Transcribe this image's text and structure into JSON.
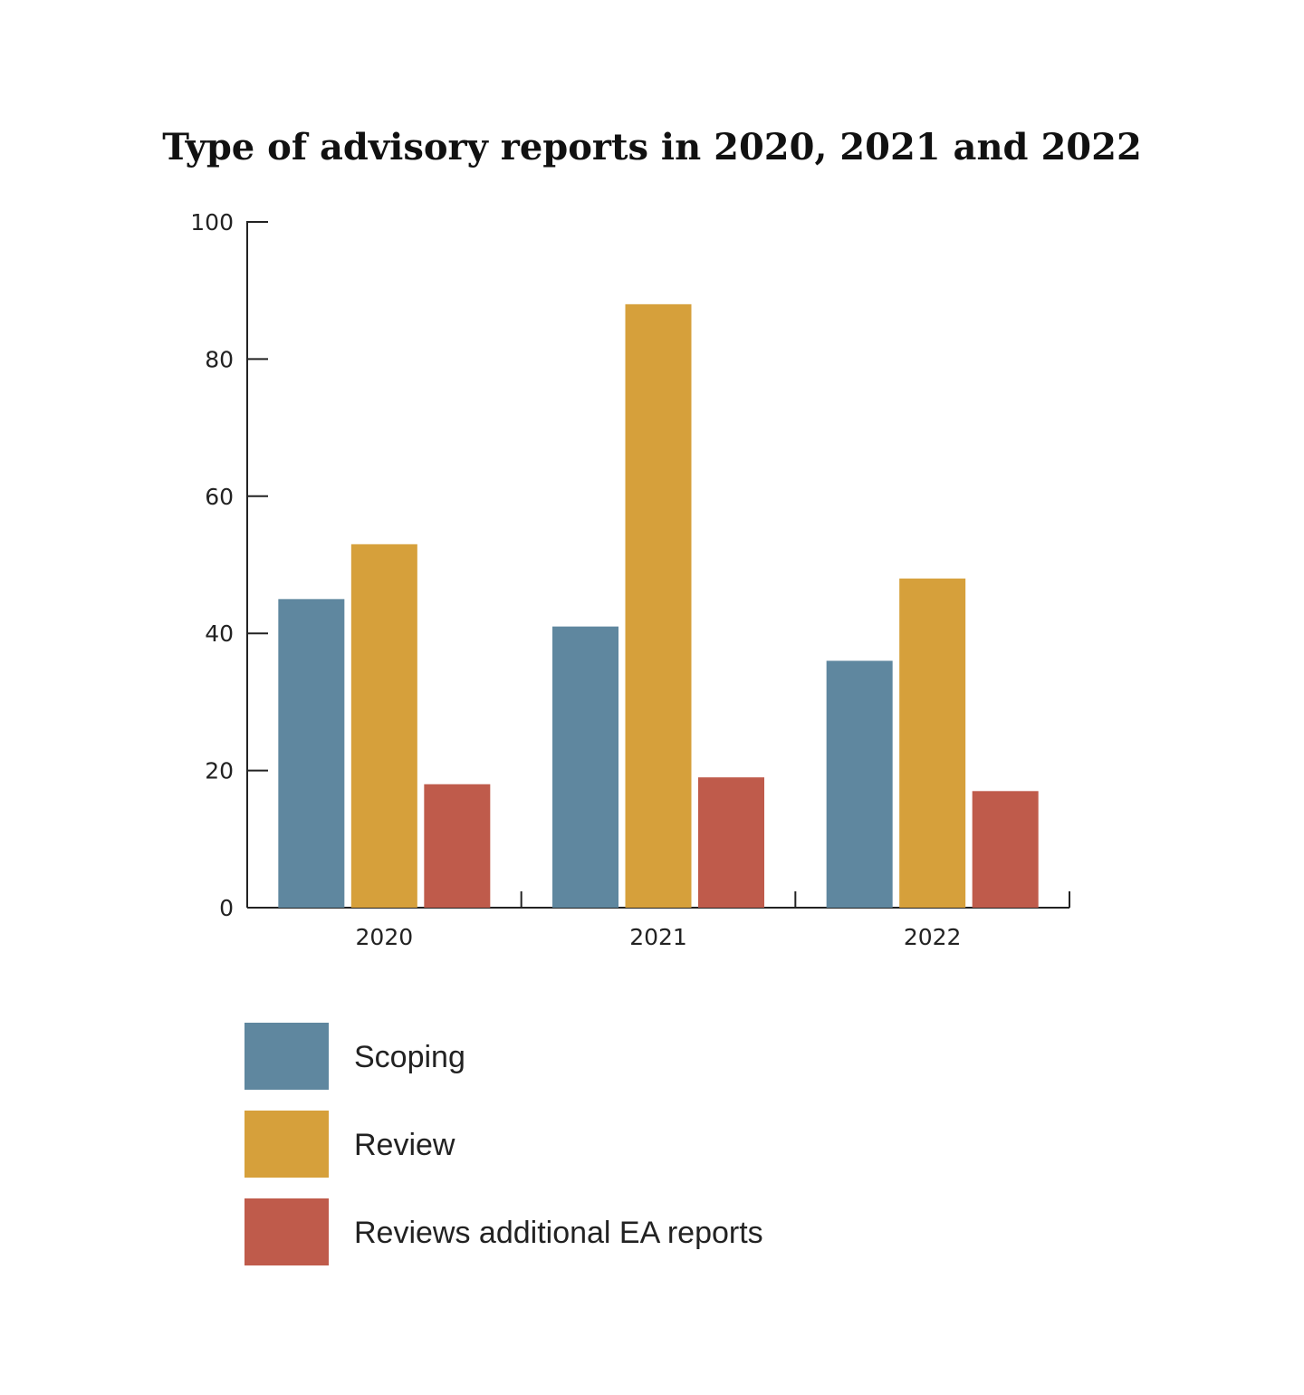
{
  "chart_data": {
    "type": "bar",
    "title": "Type of advisory reports in 2020, 2021 and 2022",
    "xlabel": "",
    "ylabel": "",
    "categories": [
      "2020",
      "2021",
      "2022"
    ],
    "series": [
      {
        "name": "Scoping",
        "color": "#5f879f",
        "values": [
          45,
          41,
          36
        ]
      },
      {
        "name": "Review",
        "color": "#d6a03b",
        "values": [
          53,
          88,
          48
        ]
      },
      {
        "name": "Reviews additional EA reports",
        "color": "#bf5b4b",
        "values": [
          18,
          19,
          17
        ]
      }
    ],
    "ylim": [
      0,
      100
    ],
    "yticks": [
      0,
      20,
      40,
      60,
      80,
      100
    ],
    "grid": false,
    "legend_position": "bottom-left"
  }
}
